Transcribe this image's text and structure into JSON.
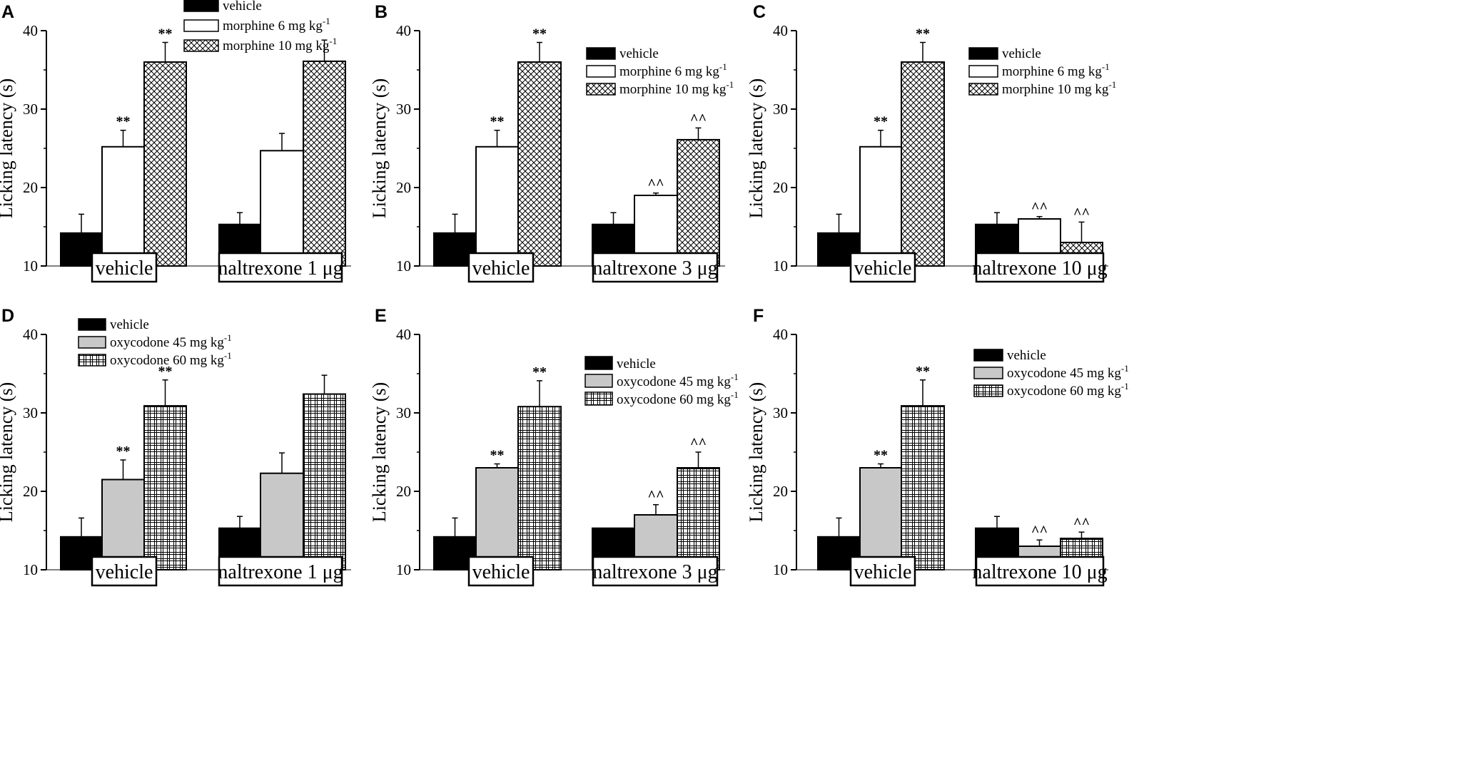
{
  "ylabel": "Licking latency (s)",
  "mu_glyph": "μ",
  "chart_data": [
    {
      "panel": "A",
      "type": "bar",
      "ylim": [
        10,
        40
      ],
      "yticks": [
        "10",
        "20",
        "30",
        "40"
      ],
      "ylabel": "Licking latency (s)",
      "legend_position": "top",
      "groups": [
        "vehicle",
        "naltrexone 1 μg"
      ],
      "series": [
        {
          "name": "vehicle",
          "values": [
            14.2,
            15.3
          ],
          "errors": [
            2.4,
            1.5
          ],
          "sig": [
            "",
            ""
          ]
        },
        {
          "name": "morphine 6 mg kg-1",
          "values": [
            25.2,
            24.7
          ],
          "errors": [
            2.1,
            2.2
          ],
          "sig": [
            "**",
            ""
          ]
        },
        {
          "name": "morphine 10 mg kg-1",
          "values": [
            36.0,
            36.1
          ],
          "errors": [
            2.5,
            2.7
          ],
          "sig": [
            "**",
            ""
          ]
        }
      ]
    },
    {
      "panel": "B",
      "type": "bar",
      "ylim": [
        10,
        40
      ],
      "yticks": [
        "10",
        "20",
        "30",
        "40"
      ],
      "ylabel": "Licking latency (s)",
      "legend_position": "top-right",
      "groups": [
        "vehicle",
        "naltrexone 3 μg"
      ],
      "series": [
        {
          "name": "vehicle",
          "values": [
            14.2,
            15.3
          ],
          "errors": [
            2.4,
            1.5
          ],
          "sig": [
            "",
            ""
          ]
        },
        {
          "name": "morphine 6 mg kg-1",
          "values": [
            25.2,
            19.0
          ],
          "errors": [
            2.1,
            0.3
          ],
          "sig": [
            "**",
            "^^"
          ]
        },
        {
          "name": "morphine 10 mg kg-1",
          "values": [
            36.0,
            26.1
          ],
          "errors": [
            2.5,
            1.5
          ],
          "sig": [
            "**",
            "^^"
          ]
        }
      ]
    },
    {
      "panel": "C",
      "type": "bar",
      "ylim": [
        10,
        40
      ],
      "yticks": [
        "10",
        "20",
        "30",
        "40"
      ],
      "ylabel": "Licking latency (s)",
      "legend_position": "top-right",
      "groups": [
        "vehicle",
        "naltrexone 10 μg"
      ],
      "series": [
        {
          "name": "vehicle",
          "values": [
            14.2,
            15.3
          ],
          "errors": [
            2.4,
            1.5
          ],
          "sig": [
            "",
            ""
          ]
        },
        {
          "name": "morphine 6 mg kg-1",
          "values": [
            25.2,
            16.0
          ],
          "errors": [
            2.1,
            0.3
          ],
          "sig": [
            "**",
            "^^"
          ]
        },
        {
          "name": "morphine 10 mg kg-1",
          "values": [
            36.0,
            13.0
          ],
          "errors": [
            2.5,
            2.6
          ],
          "sig": [
            "**",
            "^^"
          ]
        }
      ]
    },
    {
      "panel": "D",
      "type": "bar",
      "ylim": [
        10,
        40
      ],
      "yticks": [
        "10",
        "20",
        "30",
        "40"
      ],
      "ylabel": "Licking latency (s)",
      "legend_position": "top",
      "groups": [
        "vehicle",
        "naltrexone 1 μg"
      ],
      "series": [
        {
          "name": "vehicle",
          "values": [
            14.2,
            15.3
          ],
          "errors": [
            2.4,
            1.5
          ],
          "sig": [
            "",
            ""
          ]
        },
        {
          "name": "oxycodone 45 mg kg-1",
          "values": [
            21.5,
            22.3
          ],
          "errors": [
            2.5,
            2.6
          ],
          "sig": [
            "**",
            ""
          ]
        },
        {
          "name": "oxycodone 60 mg kg-1",
          "values": [
            30.9,
            32.4
          ],
          "errors": [
            3.3,
            2.4
          ],
          "sig": [
            "**",
            ""
          ]
        }
      ]
    },
    {
      "panel": "E",
      "type": "bar",
      "ylim": [
        10,
        40
      ],
      "yticks": [
        "10",
        "20",
        "30",
        "40"
      ],
      "ylabel": "Licking latency (s)",
      "legend_position": "top-right",
      "groups": [
        "vehicle",
        "naltrexone 3 μg"
      ],
      "series": [
        {
          "name": "vehicle",
          "values": [
            14.2,
            15.3
          ],
          "errors": [
            2.4,
            0.0
          ],
          "sig": [
            "",
            ""
          ]
        },
        {
          "name": "oxycodone 45 mg kg-1",
          "values": [
            23.0,
            17.0
          ],
          "errors": [
            0.5,
            1.3
          ],
          "sig": [
            "**",
            "^^"
          ]
        },
        {
          "name": "oxycodone 60 mg kg-1",
          "values": [
            30.8,
            23.0
          ],
          "errors": [
            3.3,
            2.0
          ],
          "sig": [
            "**",
            "^^"
          ]
        }
      ]
    },
    {
      "panel": "F",
      "type": "bar",
      "ylim": [
        10,
        40
      ],
      "yticks": [
        "10",
        "20",
        "30",
        "40"
      ],
      "ylabel": "Licking latency (s)",
      "legend_position": "top-right",
      "groups": [
        "vehicle",
        "naltrexone 10 μg"
      ],
      "series": [
        {
          "name": "vehicle",
          "values": [
            14.2,
            15.3
          ],
          "errors": [
            2.4,
            1.5
          ],
          "sig": [
            "",
            ""
          ]
        },
        {
          "name": "oxycodone 45 mg kg-1",
          "values": [
            23.0,
            13.0
          ],
          "errors": [
            0.5,
            0.8
          ],
          "sig": [
            "**",
            "^^"
          ]
        },
        {
          "name": "oxycodone 60 mg kg-1",
          "values": [
            30.9,
            14.0
          ],
          "errors": [
            3.3,
            0.8
          ],
          "sig": [
            "**",
            "^^"
          ]
        }
      ]
    }
  ]
}
